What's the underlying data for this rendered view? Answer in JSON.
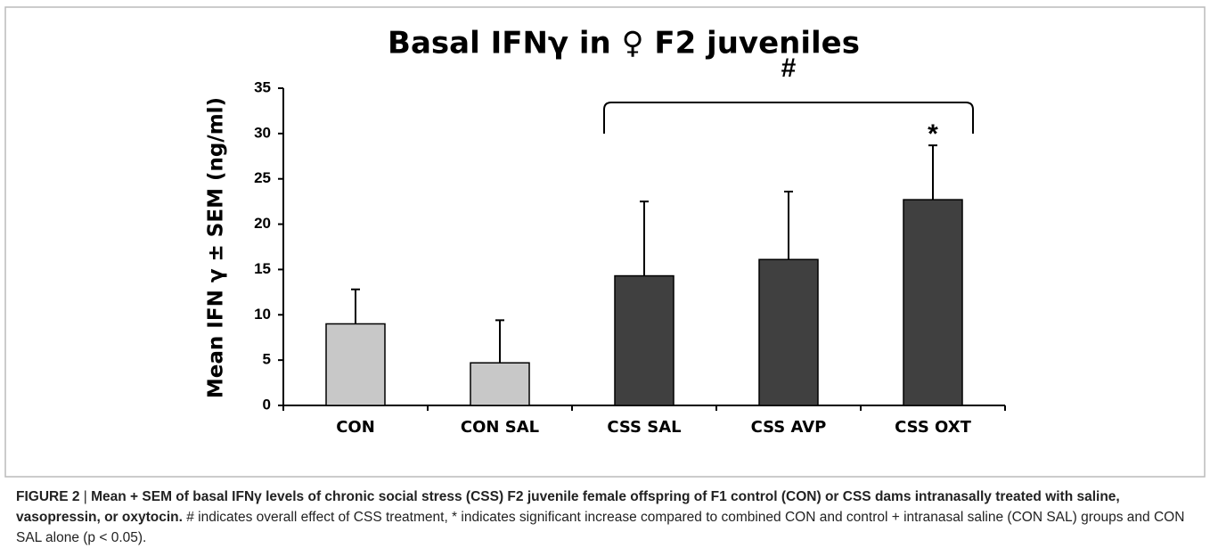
{
  "chart_data": {
    "type": "bar",
    "title": "Basal IFNγ in ♀ F2 juveniles",
    "ylabel": "Mean IFN γ ± SEM (ng/ml)",
    "categories": [
      "CON",
      "CON SAL",
      "CSS SAL",
      "CSS AVP",
      "CSS OXT"
    ],
    "values": [
      9,
      4.7,
      14.3,
      16.1,
      22.7
    ],
    "errors": [
      3.8,
      4.7,
      8.2,
      7.5,
      6.0
    ],
    "colors": [
      "#c8c8c8",
      "#c8c8c8",
      "#404040",
      "#404040",
      "#404040"
    ],
    "ylim": [
      0,
      35
    ],
    "yticks": [
      0,
      5,
      10,
      15,
      20,
      25,
      30,
      35
    ],
    "annotations": [
      {
        "text": "#"
      },
      {
        "text": "*"
      }
    ]
  },
  "caption": {
    "label": "FIGURE 2",
    "title": "Mean + SEM of basal IFNγ levels of chronic social stress (CSS) F2 juvenile female offspring of F1 control (CON) or CSS dams intranasally treated with saline, vasopressin, or oxytocin.",
    "body": "# indicates overall effect of CSS treatment, * indicates significant increase compared to combined CON and control + intranasal saline (CON SAL) groups and CON SAL alone (p < 0.05)."
  }
}
